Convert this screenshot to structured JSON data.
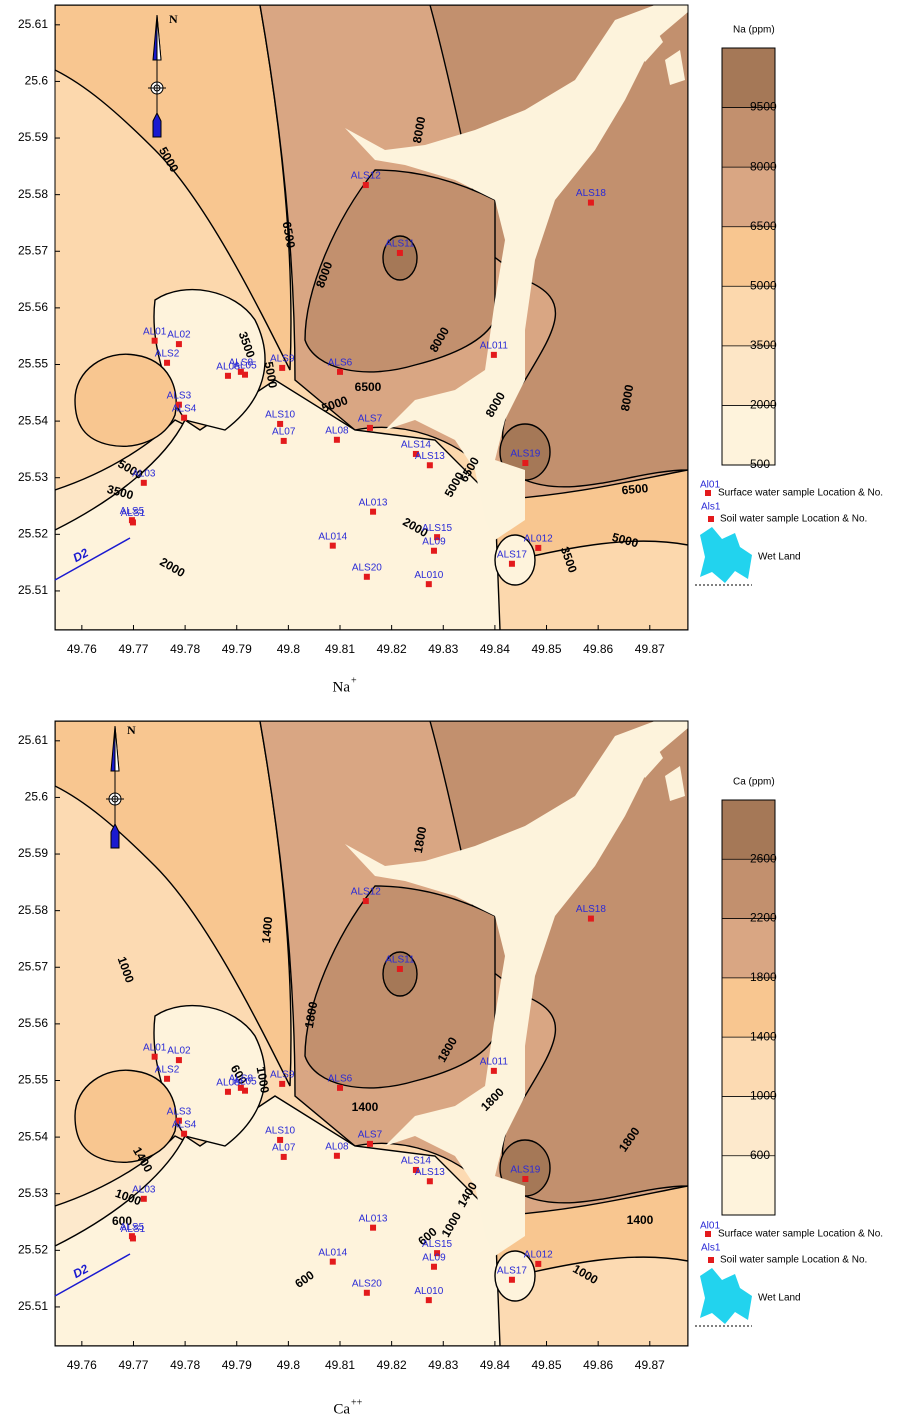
{
  "xlim": [
    49.7548,
    49.8774
  ],
  "ylim": [
    25.5031,
    25.6135
  ],
  "xticks": [
    49.76,
    49.77,
    49.78,
    49.79,
    49.8,
    49.81,
    49.82,
    49.83,
    49.84,
    49.85,
    49.86,
    49.87
  ],
  "yticks": [
    25.51,
    25.52,
    25.53,
    25.54,
    25.55,
    25.56,
    25.57,
    25.58,
    25.59,
    25.6,
    25.61
  ],
  "north_label": "N",
  "drain_label": "D2",
  "legend": {
    "surface_code": "Al01",
    "surface_text": "Surface water sample  Location & No.",
    "soil_code": "Als1",
    "soil_text": "Soil water sample Location & No.",
    "wetland_text": "Wet Land"
  },
  "samples": [
    {
      "name": "AL01",
      "x": 49.7741,
      "y": 25.5542
    },
    {
      "name": "AL02",
      "x": 49.7788,
      "y": 25.5536
    },
    {
      "name": "ALS2",
      "x": 49.7765,
      "y": 25.5503
    },
    {
      "name": "AL06",
      "x": 49.7883,
      "y": 25.548
    },
    {
      "name": "ALS8",
      "x": 49.7908,
      "y": 25.5487
    },
    {
      "name": "AL05",
      "x": 49.7916,
      "y": 25.5482
    },
    {
      "name": "ALS9",
      "x": 49.7988,
      "y": 25.5494
    },
    {
      "name": "ALS6",
      "x": 49.81,
      "y": 25.5487
    },
    {
      "name": "ALS3",
      "x": 49.7788,
      "y": 25.5429
    },
    {
      "name": "ALS4",
      "x": 49.7798,
      "y": 25.5406
    },
    {
      "name": "ALS10",
      "x": 49.7984,
      "y": 25.5395
    },
    {
      "name": "AL07",
      "x": 49.7991,
      "y": 25.5365
    },
    {
      "name": "AL08",
      "x": 49.8094,
      "y": 25.5367
    },
    {
      "name": "ALS7",
      "x": 49.8158,
      "y": 25.5388
    },
    {
      "name": "ALS14",
      "x": 49.8247,
      "y": 25.5342
    },
    {
      "name": "ALS13",
      "x": 49.8274,
      "y": 25.5322
    },
    {
      "name": "ALS19",
      "x": 49.8459,
      "y": 25.5326
    },
    {
      "name": "AL03",
      "x": 49.772,
      "y": 25.5291
    },
    {
      "name": "ALS5",
      "x": 49.7697,
      "y": 25.5225
    },
    {
      "name": "ALS1",
      "x": 49.7699,
      "y": 25.5221
    },
    {
      "name": "AL013",
      "x": 49.8164,
      "y": 25.524
    },
    {
      "name": "ALS15",
      "x": 49.8288,
      "y": 25.5195
    },
    {
      "name": "AL014",
      "x": 49.8086,
      "y": 25.518
    },
    {
      "name": "AL09",
      "x": 49.8282,
      "y": 25.5171
    },
    {
      "name": "ALS17",
      "x": 49.8433,
      "y": 25.5148
    },
    {
      "name": "AL012",
      "x": 49.8484,
      "y": 25.5176
    },
    {
      "name": "ALS20",
      "x": 49.8152,
      "y": 25.5125
    },
    {
      "name": "AL010",
      "x": 49.8272,
      "y": 25.5112
    },
    {
      "name": "ALS11",
      "x": 49.8216,
      "y": 25.5697
    },
    {
      "name": "AL011",
      "x": 49.8398,
      "y": 25.5517
    },
    {
      "name": "ALS18",
      "x": 49.8586,
      "y": 25.5786
    },
    {
      "name": "ALS12",
      "x": 49.815,
      "y": 25.5817
    }
  ],
  "panels": [
    {
      "legend_title": "Na (ppm)",
      "caption": "Na",
      "caption_sup": "+",
      "levels": [
        500,
        2000,
        3500,
        5000,
        6500,
        8000,
        9500
      ],
      "colors": [
        "#fef3dc",
        "#fde6c6",
        "#fcd8ad",
        "#f8c690",
        "#d9a683",
        "#c2906e",
        "#a57857"
      ],
      "contour_labels": [
        5000,
        6500,
        8000,
        8000,
        8000,
        8000,
        8000,
        3500,
        5000,
        6500,
        5000,
        3500,
        5000,
        2000,
        5000,
        6500,
        2000,
        6500,
        5000,
        3500
      ]
    },
    {
      "legend_title": "Ca (ppm)",
      "caption": "Ca",
      "caption_sup": "++",
      "levels": [
        600,
        1000,
        1400,
        1800,
        2200,
        2600
      ],
      "colors": [
        "#fef3dc",
        "#fde9cc",
        "#fcdab2",
        "#f8c690",
        "#d9a683",
        "#c2906e",
        "#a57857"
      ],
      "contour_labels": [
        1800,
        1400,
        1800,
        1000,
        600,
        1000,
        1400,
        1800,
        1800,
        1800,
        1400,
        1000,
        600,
        1400,
        1000,
        600,
        600,
        1400,
        1000
      ]
    }
  ]
}
